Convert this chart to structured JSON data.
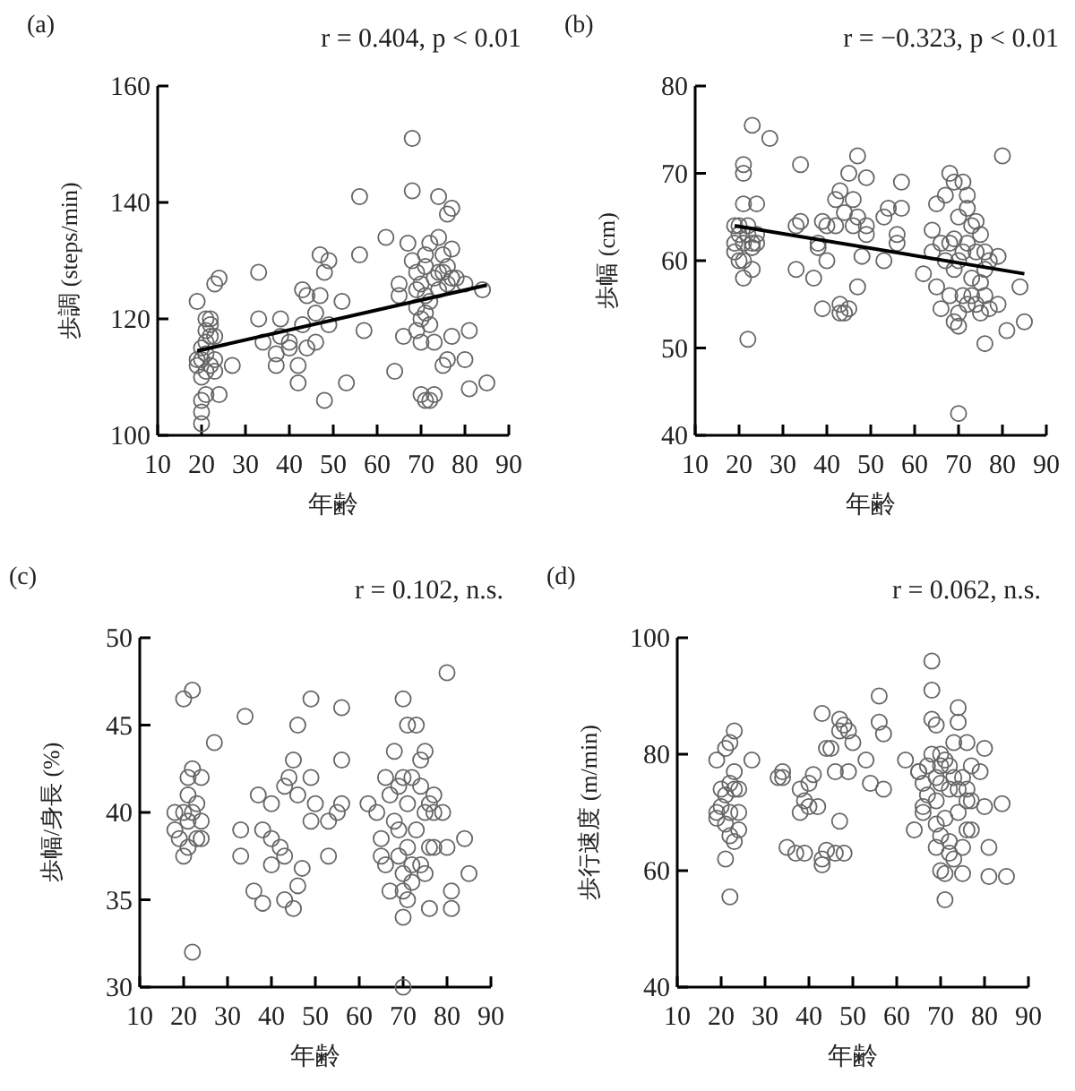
{
  "chart_data": [
    {
      "type": "scatter",
      "title": "(a)",
      "annotations": [
        "r = 0.404, p < 0.01"
      ],
      "xlabel": "年齢",
      "ylabel": "歩調 (steps/min)",
      "xlim": [
        10,
        90
      ],
      "xticks": [
        10,
        20,
        30,
        40,
        50,
        60,
        70,
        80,
        90
      ],
      "ylim": [
        100,
        160
      ],
      "yticks": [
        100,
        120,
        140,
        160
      ],
      "series": [
        {
          "type": "scatter",
          "marker": "circle",
          "color": "#666666",
          "x": [
            19,
            19,
            19,
            20,
            20,
            20,
            20,
            20,
            20,
            21,
            21,
            21,
            21,
            21,
            21,
            22,
            22,
            22,
            22,
            23,
            23,
            23,
            23,
            24,
            24,
            27,
            33,
            33,
            34,
            37,
            37,
            38,
            38,
            40,
            40,
            42,
            42,
            43,
            43,
            44,
            44,
            46,
            46,
            47,
            47,
            48,
            48,
            49,
            49,
            52,
            53,
            56,
            56,
            57,
            62,
            64,
            65,
            65,
            66,
            67,
            68,
            68,
            68,
            69,
            69,
            69,
            69,
            70,
            70,
            70,
            70,
            71,
            71,
            71,
            71,
            71,
            72,
            72,
            72,
            72,
            73,
            73,
            73,
            74,
            74,
            74,
            74,
            75,
            75,
            75,
            76,
            76,
            76,
            76,
            77,
            77,
            77,
            77,
            78,
            80,
            80,
            81,
            81,
            84,
            85
          ],
          "values": [
            123,
            113,
            112,
            110,
            106,
            104,
            102,
            115,
            113,
            120,
            118,
            116,
            114,
            111,
            107,
            120,
            117,
            119,
            112,
            126,
            117,
            113,
            111,
            127,
            107,
            112,
            128,
            120,
            116,
            112,
            114,
            120,
            117,
            116,
            115,
            109,
            112,
            125,
            119,
            124,
            115,
            116,
            121,
            131,
            124,
            106,
            128,
            130,
            119,
            123,
            109,
            141,
            131,
            118,
            134,
            111,
            126,
            124,
            117,
            133,
            142,
            151,
            130,
            128,
            125,
            118,
            122,
            116,
            107,
            120,
            126,
            106,
            124,
            121,
            129,
            131,
            106,
            123,
            119,
            133,
            107,
            116,
            127,
            141,
            134,
            125,
            128,
            112,
            128,
            131,
            138,
            113,
            126,
            129,
            139,
            117,
            132,
            127,
            127,
            113,
            126,
            108,
            118,
            125,
            109
          ]
        },
        {
          "type": "line",
          "marker": "none",
          "color": "#000000",
          "x": [
            19,
            85
          ],
          "values": [
            114.5,
            125.8
          ]
        }
      ]
    },
    {
      "type": "scatter",
      "title": "(b)",
      "annotations": [
        "r = −0.323, p < 0.01"
      ],
      "xlabel": "年齢",
      "ylabel": "歩幅 (cm)",
      "xlim": [
        10,
        90
      ],
      "xticks": [
        10,
        20,
        30,
        40,
        50,
        60,
        70,
        80,
        90
      ],
      "ylim": [
        40,
        80
      ],
      "yticks": [
        40,
        50,
        60,
        70,
        80
      ],
      "series": [
        {
          "type": "scatter",
          "marker": "circle",
          "color": "#666666",
          "x": [
            19,
            19,
            19,
            20,
            20,
            20,
            21,
            21,
            21,
            21,
            21,
            21,
            22,
            22,
            22,
            23,
            23,
            23,
            23,
            24,
            24,
            24,
            27,
            33,
            33,
            34,
            34,
            37,
            38,
            38,
            39,
            39,
            40,
            40,
            42,
            42,
            43,
            43,
            43,
            44,
            44,
            45,
            45,
            46,
            46,
            47,
            47,
            47,
            48,
            49,
            49,
            49,
            53,
            53,
            54,
            56,
            56,
            57,
            57,
            62,
            64,
            64,
            65,
            65,
            66,
            66,
            67,
            67,
            68,
            68,
            68,
            69,
            69,
            69,
            69,
            70,
            70,
            70,
            70,
            70,
            71,
            71,
            71,
            72,
            72,
            72,
            72,
            73,
            73,
            73,
            74,
            74,
            74,
            75,
            75,
            75,
            76,
            76,
            76,
            76,
            77,
            77,
            79,
            79,
            80,
            81,
            84,
            85
          ],
          "values": [
            64,
            61,
            62,
            63,
            60,
            64,
            71,
            70,
            66.5,
            60,
            58,
            62,
            51,
            64,
            63,
            75.5,
            62,
            61.5,
            59,
            66.5,
            62,
            63,
            74,
            59,
            64,
            71,
            64.5,
            58,
            62,
            61.5,
            54.5,
            64.5,
            60,
            64,
            64,
            67,
            54,
            68,
            55,
            54,
            65.5,
            70,
            54.5,
            67,
            64,
            72,
            57,
            65,
            60.5,
            69.5,
            64,
            63,
            65,
            60,
            66,
            62,
            63,
            69,
            66,
            58.5,
            61,
            63.5,
            66.5,
            57,
            62,
            54.5,
            67.5,
            60,
            70,
            62,
            56,
            69,
            62.5,
            59,
            53,
            65,
            52.5,
            54,
            60,
            42.5,
            69,
            56,
            61,
            66,
            67.5,
            55,
            62,
            64,
            58,
            56,
            64.5,
            61,
            55,
            63,
            57.5,
            54,
            50.5,
            59,
            56,
            61,
            54.5,
            60,
            60.5,
            55,
            72,
            52,
            57,
            53
          ]
        },
        {
          "type": "line",
          "marker": "none",
          "color": "#000000",
          "x": [
            19,
            85
          ],
          "values": [
            64,
            58.5
          ]
        }
      ]
    },
    {
      "type": "scatter",
      "title": "(c)",
      "annotations": [
        "r = 0.102, n.s."
      ],
      "xlabel": "年齢",
      "ylabel": "歩幅/身長 (%)",
      "xlim": [
        10,
        90
      ],
      "xticks": [
        10,
        20,
        30,
        40,
        50,
        60,
        70,
        80,
        90
      ],
      "ylim": [
        30,
        50
      ],
      "yticks": [
        30,
        35,
        40,
        45,
        50
      ],
      "series": [
        {
          "type": "scatter",
          "marker": "circle",
          "color": "#666666",
          "x": [
            18,
            18,
            19,
            20,
            20,
            20,
            21,
            21,
            21,
            21,
            22,
            22,
            22,
            22,
            23,
            23,
            24,
            24,
            24,
            27,
            33,
            33,
            34,
            36,
            37,
            38,
            38,
            40,
            40,
            40,
            42,
            43,
            43,
            43,
            44,
            45,
            45,
            46,
            46,
            46,
            47,
            49,
            49,
            49,
            50,
            53,
            53,
            55,
            56,
            56,
            56,
            62,
            64,
            65,
            65,
            66,
            66,
            67,
            67,
            68,
            68,
            69,
            69,
            69,
            70,
            70,
            70,
            70,
            70,
            70,
            71,
            71,
            71,
            71,
            72,
            72,
            72,
            73,
            73,
            74,
            74,
            74,
            75,
            75,
            75,
            76,
            76,
            76,
            77,
            77,
            77,
            79,
            80,
            80,
            81,
            81,
            84,
            85
          ],
          "values": [
            40,
            39,
            38.5,
            46.5,
            40,
            37.5,
            39.5,
            42,
            38,
            41,
            47,
            42.5,
            40,
            32,
            40.5,
            38.5,
            42,
            39.5,
            38.5,
            44,
            39,
            37.5,
            45.5,
            35.5,
            41,
            39,
            34.8,
            37,
            38.5,
            40.5,
            38,
            35,
            41.5,
            37.5,
            42,
            43,
            34.5,
            45,
            35.8,
            41,
            36.8,
            46.5,
            42,
            39.5,
            40.5,
            37.5,
            39.5,
            40,
            40.5,
            43,
            46,
            40.5,
            40,
            37.5,
            38.5,
            42,
            37,
            35.5,
            41,
            43.5,
            39.5,
            37.5,
            39,
            41.5,
            36.5,
            35.5,
            34,
            46.5,
            42,
            30,
            45,
            38,
            40.5,
            35,
            42,
            37,
            36,
            45,
            39,
            43,
            41.5,
            37,
            36.5,
            43.5,
            40,
            34.5,
            40.5,
            38,
            38,
            41,
            40,
            40,
            48,
            38,
            35.5,
            34.5,
            38.5,
            36.5
          ]
        }
      ]
    },
    {
      "type": "scatter",
      "title": "(d)",
      "annotations": [
        "r = 0.062, n.s."
      ],
      "xlabel": "年齢",
      "ylabel": "歩行速度 (m/min)",
      "xlim": [
        10,
        90
      ],
      "xticks": [
        10,
        20,
        30,
        40,
        50,
        60,
        70,
        80,
        90
      ],
      "ylim": [
        40,
        100
      ],
      "yticks": [
        40,
        60,
        80,
        100
      ],
      "series": [
        {
          "type": "scatter",
          "marker": "circle",
          "color": "#666666",
          "x": [
            19,
            19,
            19,
            20,
            20,
            21,
            21,
            21,
            21,
            22,
            22,
            22,
            22,
            22,
            23,
            23,
            23,
            23,
            24,
            24,
            24,
            27,
            33,
            34,
            34,
            35,
            37,
            38,
            38,
            39,
            39,
            40,
            40,
            41,
            42,
            43,
            43,
            43,
            44,
            44,
            45,
            46,
            46,
            47,
            47,
            47,
            48,
            48,
            49,
            49,
            50,
            53,
            54,
            56,
            56,
            57,
            57,
            62,
            64,
            65,
            65,
            66,
            66,
            66,
            67,
            67,
            68,
            68,
            68,
            68,
            69,
            69,
            69,
            69,
            69,
            70,
            70,
            70,
            70,
            70,
            71,
            71,
            71,
            71,
            72,
            72,
            72,
            72,
            73,
            73,
            73,
            74,
            74,
            74,
            74,
            75,
            75,
            75,
            76,
            76,
            76,
            76,
            77,
            77,
            77,
            79,
            80,
            80,
            81,
            81,
            84,
            85
          ],
          "values": [
            79,
            70,
            69,
            74,
            71,
            81,
            62,
            68,
            73,
            82,
            55.5,
            75,
            66,
            70,
            84,
            77,
            74,
            65,
            70,
            67,
            74,
            79,
            76,
            77,
            76,
            64,
            63,
            70,
            74,
            72,
            63,
            71,
            75,
            76.5,
            71,
            87,
            61,
            62,
            81,
            63.5,
            81,
            77,
            63,
            86,
            68.5,
            84,
            85,
            63,
            77,
            84,
            82,
            79,
            75,
            90,
            85.5,
            83.5,
            74,
            79,
            67,
            77,
            77,
            71,
            75,
            70,
            78,
            73,
            96,
            91,
            86,
            80,
            85,
            76,
            72,
            68,
            64,
            80,
            78,
            75,
            60,
            66,
            59.5,
            55,
            69,
            79,
            78,
            65,
            63,
            74,
            82,
            76,
            62,
            88,
            85.5,
            74,
            70,
            76,
            64,
            59.5,
            82,
            74,
            72,
            67,
            78,
            67,
            72,
            77,
            81,
            71,
            64,
            59,
            71.5,
            59
          ]
        }
      ]
    }
  ]
}
